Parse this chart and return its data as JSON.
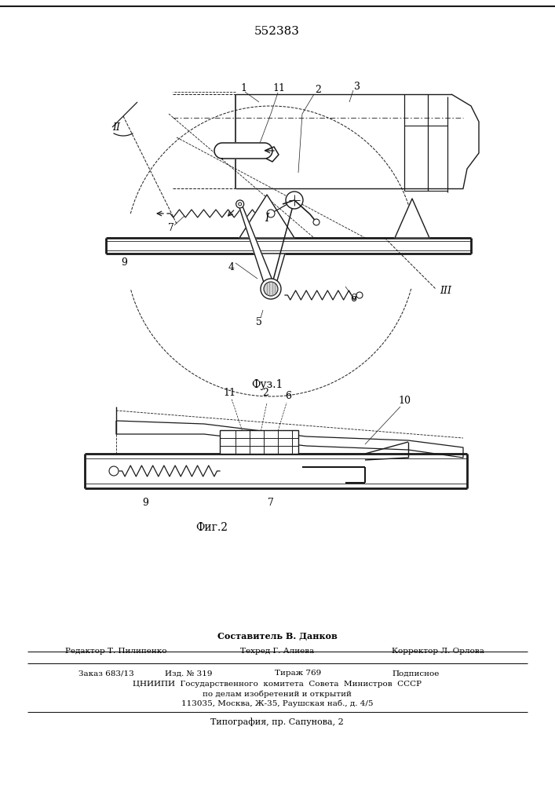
{
  "patent_number": "552383",
  "fig1_label": "Фуз.1",
  "fig2_label": "Фиг.2",
  "background_color": "#ffffff",
  "line_color": "#1a1a1a",
  "footer_line0": "Составитель В. Данков",
  "footer_editor": "Редактор Т. Пилипенко",
  "footer_techr": "Техред Г. Алиева",
  "footer_corr": "Корректор Л. Орлова",
  "footer_zak": "Заказ 683/13",
  "footer_izd": "Изд. № 319",
  "footer_tir": "Тираж 769",
  "footer_podp": "Подписное",
  "footer_cniipi": "ЦНИИПИ  Государственного  комитета  Совета  Министров  СССР",
  "footer_po": "по делам изобретений и открытий",
  "footer_addr": "113035, Москва, Ж-35, Раушская наб., д. 4/5",
  "footer_tip": "Типография, пр. Сапунова, 2"
}
